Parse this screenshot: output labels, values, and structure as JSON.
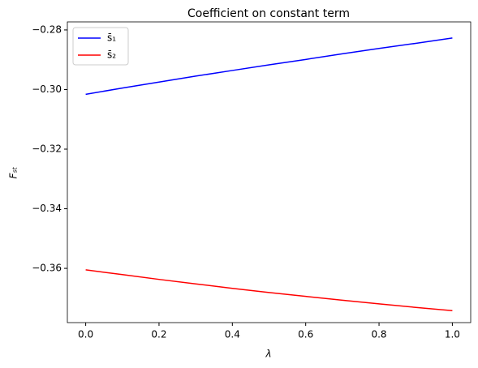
{
  "chart_data": {
    "type": "line",
    "title": "Coefficient on constant term",
    "x_label": "λ",
    "y_label": "Fₛₜ",
    "x": [
      0,
      0.1,
      0.2,
      0.3,
      0.4,
      0.5,
      0.6,
      0.7,
      0.8,
      0.9,
      1
    ],
    "series": [
      {
        "name": "s̄₁",
        "color": "#0000ff",
        "values": [
          -0.3016,
          -0.2995,
          -0.2975,
          -0.2955,
          -0.2936,
          -0.2917,
          -0.2899,
          -0.288,
          -0.2862,
          -0.2845,
          -0.2827
        ]
      },
      {
        "name": "s̄₂",
        "color": "#ff0000",
        "values": [
          -0.3605,
          -0.3621,
          -0.3637,
          -0.3652,
          -0.3667,
          -0.3681,
          -0.3694,
          -0.3707,
          -0.3719,
          -0.3731,
          -0.3742
        ]
      }
    ],
    "xlim": [
      -0.05,
      1.05
    ],
    "xticks": [
      {
        "value": 0,
        "label": "0.0"
      },
      0.2,
      0.4,
      0.6,
      0.8,
      {
        "value": 1,
        "label": "1.0"
      }
    ],
    "ylim": [
      -0.3782,
      -0.2773
    ],
    "yticks": [
      {
        "value": -0.28,
        "label": "−0.28"
      },
      {
        "value": -0.3,
        "label": "−0.30"
      },
      {
        "value": -0.32,
        "label": "−0.32"
      },
      {
        "value": -0.34,
        "label": "−0.34"
      },
      {
        "value": -0.36,
        "label": "−0.36"
      }
    ],
    "grid": false,
    "legend": "upper left"
  }
}
